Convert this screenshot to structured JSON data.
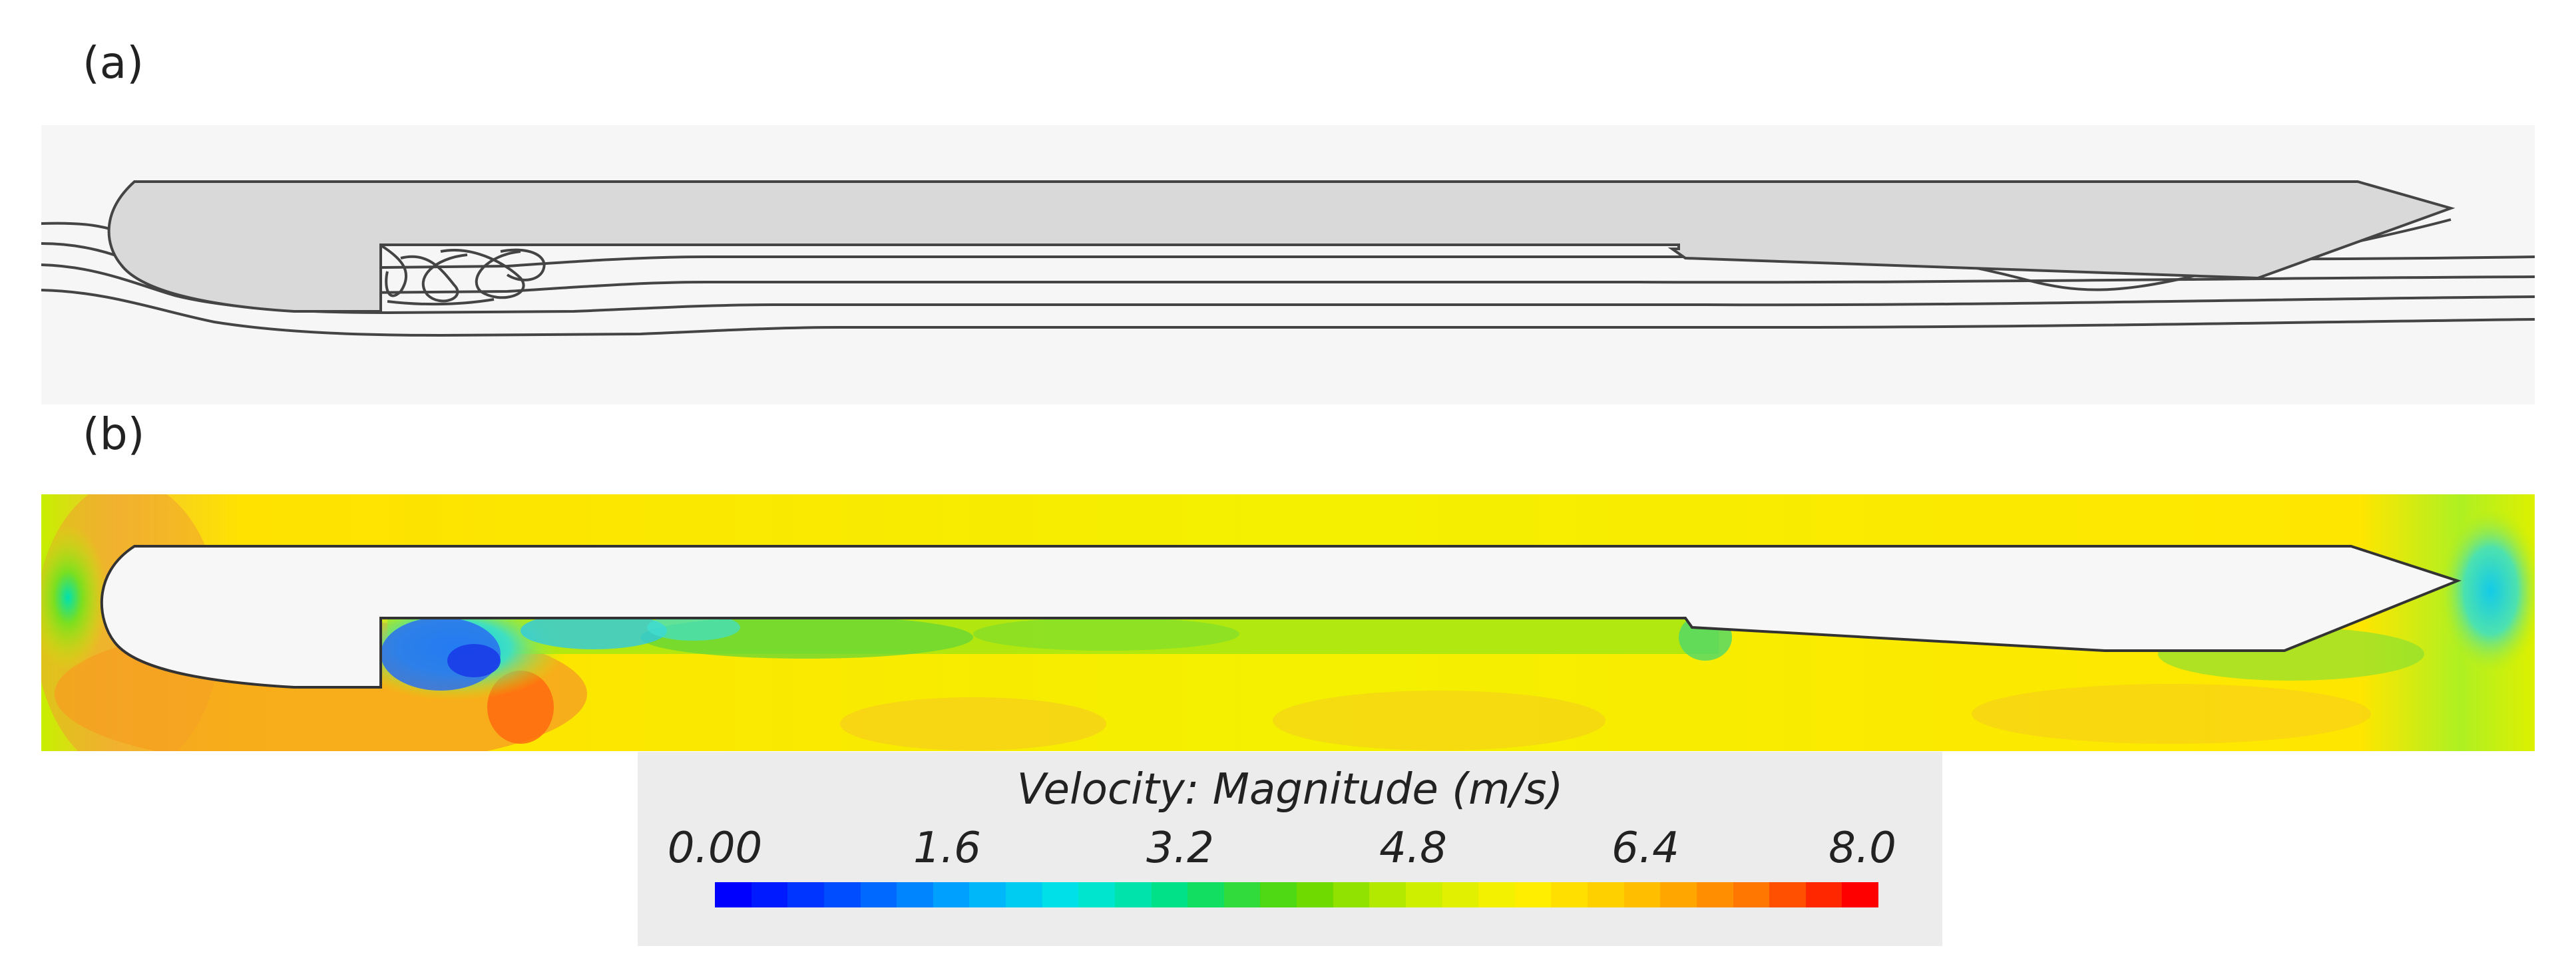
{
  "panels": {
    "a_label": "(a)",
    "b_label": "(b)"
  },
  "legend": {
    "title": "Velocity: Magnitude (m/s)",
    "ticks": [
      "0.00",
      "1.6",
      "3.2",
      "4.8",
      "6.4",
      "8.0"
    ],
    "range": [
      0.0,
      8.0
    ],
    "colormap": [
      "#0000ff",
      "#0050ff",
      "#00a6ff",
      "#00e6e6",
      "#00e07a",
      "#5ed600",
      "#c8ee00",
      "#fff200",
      "#ffc400",
      "#ff7a00",
      "#ff0000"
    ]
  },
  "colors": {
    "hull_fill_a": "#d9d9d9",
    "hull_fill_b": "#f7f7f7",
    "streamline": "#444444"
  }
}
